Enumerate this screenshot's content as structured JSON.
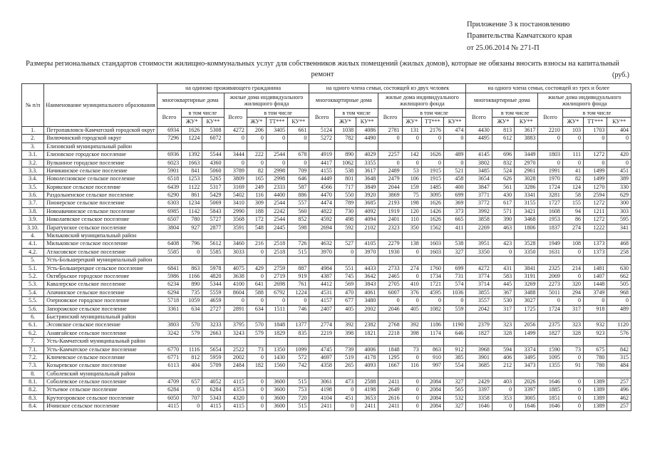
{
  "page": {
    "annotation_line1": "Приложение 3 к постановлению",
    "annotation_line2": "Правительства Камчатского края",
    "annotation_line3": "от 25.06.2014 № 271-П",
    "title": "Размеры региональных стандартов стоимости жилищно-коммунальных услуг для собственников жилых помещений (жилых домов), которые не обязаны вносить взносы на капитальный ремонт",
    "currency_note": "(руб.)"
  },
  "table": {
    "headers": {
      "num": "№ п/п",
      "name": "Наименование муниципального образования",
      "group1": "на одиноко проживающего гражданина",
      "group2": "на одного члена семьи, состоящей из двух человек",
      "group3": "на одного члена семьи, состоящей из трех и более",
      "subgroup_mkd": "многоквартирные дома",
      "subgroup_ind": "жилые дома индивидуального жилищного фонда",
      "total": "Всего",
      "including": "в том числе",
      "zhu": "ЖУ*",
      "ku": "КУ**",
      "tt": "ТТ***"
    },
    "rows": [
      {
        "num": "1.",
        "name": "Петропавловск-Камчатский городской округ",
        "values": [
          6934,
          1626,
          5308,
          4272,
          206,
          3405,
          661,
          5124,
          1038,
          4086,
          2781,
          131,
          2176,
          474,
          4430,
          813,
          3617,
          2210,
          103,
          1703,
          404
        ]
      },
      {
        "num": "2.",
        "name": "Вилючинский городской округ",
        "values": [
          7296,
          1224,
          6072,
          0,
          0,
          0,
          0,
          5272,
          782,
          4490,
          0,
          0,
          0,
          0,
          4495,
          612,
          3883,
          0,
          0,
          0,
          0
        ]
      },
      {
        "num": "3.",
        "name": "Елизовский муниципальный район",
        "values": []
      },
      {
        "num": "3.1.",
        "name": "Елизовское городское поселение",
        "values": [
          6936,
          1392,
          5544,
          3444,
          222,
          2544,
          678,
          4919,
          890,
          4029,
          2257,
          142,
          1626,
          489,
          4145,
          696,
          3449,
          1803,
          111,
          1272,
          420
        ]
      },
      {
        "num": "3.2.",
        "name": "Вулканное городское поселение",
        "values": [
          6023,
          1663,
          4360,
          0,
          0,
          0,
          0,
          4417,
          1062,
          3355,
          0,
          0,
          0,
          0,
          3802,
          832,
          2970,
          0,
          0,
          0,
          0
        ]
      },
      {
        "num": "3.3.",
        "name": "Начикинское сельское поселение",
        "values": [
          5901,
          841,
          5060,
          3789,
          82,
          2998,
          709,
          4155,
          538,
          3617,
          2489,
          53,
          1915,
          521,
          3485,
          524,
          2961,
          1991,
          41,
          1499,
          451
        ]
      },
      {
        "num": "3.4.",
        "name": "Новолесновское сельское поселение",
        "values": [
          6518,
          1253,
          5265,
          3809,
          165,
          2998,
          646,
          4449,
          801,
          3648,
          2479,
          106,
          1915,
          458,
          3654,
          626,
          3028,
          1970,
          82,
          1499,
          389
        ]
      },
      {
        "num": "3.5.",
        "name": "Корякское сельское поселение",
        "values": [
          6439,
          1122,
          5317,
          3169,
          249,
          2333,
          587,
          4566,
          717,
          3849,
          2044,
          159,
          1485,
          400,
          3847,
          561,
          3286,
          1724,
          124,
          1270,
          330
        ]
      },
      {
        "num": "3.6.",
        "name": "Раздольненское сельское поселение",
        "values": [
          6290,
          861,
          5429,
          5402,
          116,
          4400,
          886,
          4470,
          550,
          3920,
          3869,
          75,
          3095,
          699,
          3771,
          430,
          3341,
          3281,
          58,
          2594,
          629
        ]
      },
      {
        "num": "3.7.",
        "name": "Пионерское сельское поселение",
        "values": [
          6303,
          1234,
          5069,
          3410,
          309,
          2544,
          557,
          4474,
          789,
          3685,
          2193,
          198,
          1626,
          369,
          3772,
          617,
          3155,
          1727,
          155,
          1272,
          300
        ]
      },
      {
        "num": "3.8.",
        "name": "Новоавачинское сельское поселение",
        "values": [
          6985,
          1142,
          5843,
          2990,
          188,
          2242,
          560,
          4822,
          730,
          4092,
          1919,
          120,
          1426,
          373,
          3992,
          571,
          3421,
          1608,
          94,
          1211,
          303
        ]
      },
      {
        "num": "3.9.",
        "name": "Николаевское сельское поселение",
        "values": [
          6507,
          780,
          5727,
          3568,
          172,
          2544,
          852,
          4592,
          498,
          4094,
          2401,
          110,
          1626,
          665,
          3858,
          390,
          3468,
          1953,
          86,
          1272,
          595
        ]
      },
      {
        "num": "3.10.",
        "name": "Паратунское сельское поселение",
        "values": [
          3804,
          927,
          2877,
          3591,
          548,
          2445,
          598,
          2694,
          592,
          2102,
          2323,
          350,
          1562,
          411,
          2269,
          463,
          1806,
          1837,
          274,
          1222,
          341
        ]
      },
      {
        "num": "4.",
        "name": "Мильковский муниципальный район",
        "values": []
      },
      {
        "num": "4.1.",
        "name": "Мильковское сельское поселение",
        "values": [
          6408,
          796,
          5612,
          3460,
          216,
          2518,
          726,
          4632,
          527,
          4105,
          2279,
          138,
          1603,
          538,
          3951,
          423,
          3528,
          1949,
          108,
          1373,
          468
        ]
      },
      {
        "num": "4.2.",
        "name": "Атласовское сельское поселение",
        "values": [
          5585,
          0,
          5585,
          3033,
          0,
          2518,
          515,
          3970,
          0,
          3970,
          1930,
          0,
          1603,
          327,
          3350,
          0,
          3350,
          1631,
          0,
          1373,
          258
        ]
      },
      {
        "num": "5.",
        "name": "Усть-Большерецкий муниципальный район",
        "values": []
      },
      {
        "num": "5.1.",
        "name": "Усть-Большерецкое сельское поселение",
        "values": [
          6841,
          863,
          5978,
          4075,
          429,
          2759,
          887,
          4984,
          551,
          4433,
          2733,
          274,
          1760,
          699,
          4272,
          431,
          3841,
          2325,
          214,
          1481,
          630
        ]
      },
      {
        "num": "5.2.",
        "name": "Октябрьское городское поселение",
        "values": [
          5986,
          1166,
          4820,
          3638,
          0,
          2719,
          919,
          4387,
          745,
          3642,
          2465,
          0,
          1734,
          731,
          3774,
          583,
          3191,
          2069,
          0,
          1407,
          662
        ]
      },
      {
        "num": "5.3.",
        "name": "Кавалерское сельское поселение",
        "values": [
          6234,
          890,
          5344,
          4100,
          641,
          2698,
          761,
          4412,
          569,
          3843,
          2705,
          410,
          1721,
          574,
          3714,
          445,
          3269,
          2273,
          320,
          1448,
          505
        ]
      },
      {
        "num": "5.4.",
        "name": "Апачинское сельское поселение",
        "values": [
          6294,
          735,
          5559,
          8604,
          588,
          6792,
          1224,
          4531,
          470,
          4061,
          6007,
          376,
          4595,
          1036,
          3855,
          367,
          3488,
          5011,
          294,
          3749,
          968
        ]
      },
      {
        "num": "5.5.",
        "name": "Озерновское городское поселение",
        "values": [
          5718,
          1059,
          4659,
          0,
          0,
          0,
          0,
          4157,
          677,
          3480,
          0,
          0,
          0,
          0,
          3557,
          530,
          3027,
          0,
          0,
          0,
          0
        ]
      },
      {
        "num": "5.6.",
        "name": "Запорожское сельское поселение",
        "values": [
          3361,
          634,
          2727,
          2891,
          634,
          1511,
          746,
          2407,
          405,
          2002,
          2046,
          405,
          1082,
          559,
          2042,
          317,
          1725,
          1724,
          317,
          918,
          489
        ]
      },
      {
        "num": "6.",
        "name": "Быстринский муниципальный район",
        "values": []
      },
      {
        "num": "6.1.",
        "name": "Эссовское сельское поселение",
        "values": [
          3803,
          570,
          3233,
          3795,
          570,
          1848,
          1377,
          2774,
          392,
          2382,
          2768,
          392,
          1186,
          1190,
          2379,
          323,
          2056,
          2375,
          323,
          932,
          1120
        ]
      },
      {
        "num": "6.2.",
        "name": "Анавгайское сельское поселение",
        "values": [
          3242,
          579,
          2663,
          3243,
          579,
          1829,
          835,
          2219,
          398,
          1821,
          2218,
          398,
          1174,
          646,
          1827,
          328,
          1499,
          1827,
          328,
          923,
          576
        ]
      },
      {
        "num": "7.",
        "name": "Усть-Камчатский муниципальный район",
        "values": []
      },
      {
        "num": "7.1.",
        "name": "Усть-Камчатское сельское поселение",
        "values": [
          6770,
          1116,
          5654,
          2522,
          73,
          1350,
          1099,
          4745,
          739,
          4006,
          1848,
          73,
          863,
          912,
          3968,
          594,
          3374,
          1590,
          73,
          675,
          842
        ]
      },
      {
        "num": "7.2.",
        "name": "Ключевское сельское поселение",
        "values": [
          6771,
          812,
          5959,
          2002,
          0,
          1430,
          572,
          4697,
          519,
          4178,
          1295,
          0,
          910,
          385,
          3901,
          406,
          3495,
          1095,
          0,
          780,
          315
        ]
      },
      {
        "num": "7.3.",
        "name": "Козыревское сельское поселение",
        "values": [
          6113,
          404,
          5709,
          2484,
          182,
          1560,
          742,
          4358,
          265,
          4093,
          1667,
          116,
          997,
          554,
          3685,
          212,
          3473,
          1355,
          91,
          780,
          484
        ]
      },
      {
        "num": "8.",
        "name": "Соболевский муниципальный район",
        "values": []
      },
      {
        "num": "8.1.",
        "name": "Соболевское сельское поселение",
        "values": [
          4709,
          657,
          4052,
          4115,
          0,
          3600,
          515,
          3061,
          473,
          2588,
          2411,
          0,
          2084,
          327,
          2429,
          403,
          2026,
          1646,
          0,
          1389,
          257
        ]
      },
      {
        "num": "8.2.",
        "name": "Устьевое сельское поселение",
        "values": [
          6284,
          0,
          6284,
          4353,
          0,
          3600,
          753,
          4198,
          0,
          4198,
          2649,
          0,
          2084,
          565,
          3397,
          0,
          3397,
          1885,
          0,
          1389,
          496
        ]
      },
      {
        "num": "8.3.",
        "name": "Крутогоровское сельское поселение",
        "values": [
          6050,
          707,
          5343,
          4320,
          0,
          3600,
          720,
          4104,
          451,
          3653,
          2616,
          0,
          2084,
          532,
          3358,
          353,
          3005,
          1851,
          0,
          1389,
          462
        ]
      },
      {
        "num": "8.4.",
        "name": "Ичинское сельское поселение",
        "values": [
          4115,
          0,
          4115,
          4115,
          0,
          3600,
          515,
          2411,
          0,
          2411,
          2411,
          0,
          2084,
          327,
          1646,
          0,
          1646,
          1646,
          0,
          1389,
          257
        ]
      }
    ]
  }
}
